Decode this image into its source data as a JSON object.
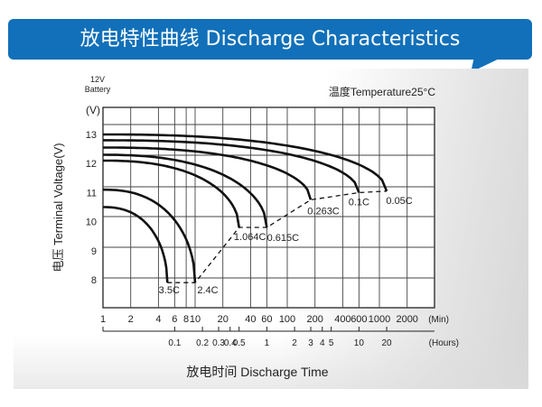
{
  "banner": {
    "title": "放电特性曲线 Discharge Characteristics",
    "color": "#1170b9"
  },
  "chart_data": {
    "type": "line",
    "title": "放电特性曲线 Discharge Characteristics",
    "battery_label": [
      "12V",
      "Battery"
    ],
    "temperature_label": "温度Temperature25°C",
    "ylabel": "电压 Terminal Voltage(V)",
    "yunit": "(V)",
    "xlabel": "放电时间 Discharge Time",
    "xscale": "log",
    "xlim_min": [
      1,
      3000
    ],
    "ylim": [
      7.0,
      13.5
    ],
    "grid": true,
    "yticks": [
      "13",
      "12",
      "11",
      "10",
      "9",
      "8"
    ],
    "ytick_values": [
      13,
      12,
      11,
      10,
      9,
      8
    ],
    "x_min_ticks": [
      1,
      2,
      4,
      6,
      8,
      10,
      20,
      40,
      60,
      100,
      200,
      400,
      600,
      1000,
      2000
    ],
    "x_min_unit": "(Min)",
    "x_hour_ticks": [
      {
        "label": "0.1",
        "min": 6
      },
      {
        "label": "0.2",
        "min": 12
      },
      {
        "label": "0.3",
        "min": 18
      },
      {
        "label": "0.4",
        "min": 24
      },
      {
        "label": "0.5",
        "min": 30
      },
      {
        "label": "1",
        "min": 60
      },
      {
        "label": "2",
        "min": 120
      },
      {
        "label": "3",
        "min": 180
      },
      {
        "label": "4",
        "min": 240
      },
      {
        "label": "5",
        "min": 300
      },
      {
        "label": "10",
        "min": 600
      },
      {
        "label": "20",
        "min": 1200
      }
    ],
    "x_hour_unit": "(Hours)",
    "series": [
      {
        "name": "0.05C",
        "start_v": 13.0,
        "end_min": 1200,
        "end_v": 11.05
      },
      {
        "name": "0.1C",
        "start_v": 12.8,
        "end_min": 600,
        "end_v": 11.0
      },
      {
        "name": "0.263C",
        "start_v": 12.55,
        "end_min": 180,
        "end_v": 10.75
      },
      {
        "name": "0.615C",
        "start_v": 12.3,
        "end_min": 60,
        "end_v": 9.8
      },
      {
        "name": "1.064C",
        "start_v": 12.1,
        "end_min": 30,
        "end_v": 9.8
      },
      {
        "name": "2.4C",
        "start_v": 11.1,
        "end_min": 10,
        "end_v": 7.9
      },
      {
        "name": "3.5C",
        "start_v": 10.5,
        "end_min": 5,
        "end_v": 7.9
      }
    ],
    "cutoff_line": "dashed"
  }
}
